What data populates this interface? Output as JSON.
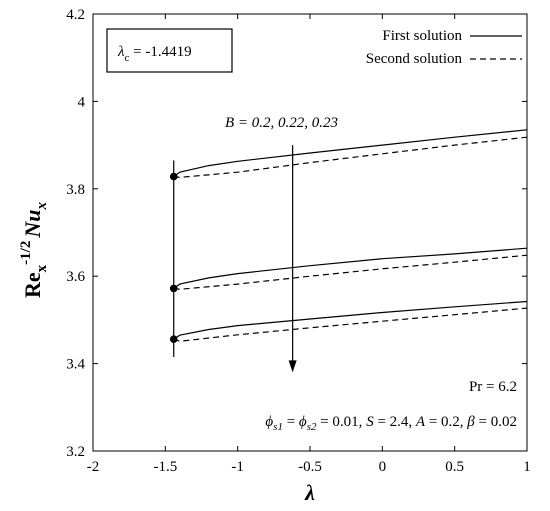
{
  "chart_data": {
    "type": "line",
    "xlabel": "λ",
    "ylabel": {
      "base": "Re",
      "sub": "x",
      "sup": "-1/2",
      "rest": "Nu",
      "rest_sub": "x"
    },
    "xlim": [
      -2,
      1
    ],
    "ylim": [
      3.2,
      4.2
    ],
    "x_ticks": [
      "-2",
      "-1.5",
      "-1",
      "-0.5",
      "0",
      "0.5",
      "1"
    ],
    "y_ticks": [
      "3.2",
      "3.4",
      "3.6",
      "3.8",
      "4",
      "4.2"
    ],
    "grid": false,
    "legend_position": "top-right",
    "legend": [
      {
        "label": "First solution",
        "style": "solid"
      },
      {
        "label": "Second solution",
        "style": "dashed"
      }
    ],
    "critical_label": {
      "symbol": "λ",
      "sub": "c",
      "value": " = -1.4419"
    },
    "critical_lambda": -1.4419,
    "arrow_label": "B = 0.2, 0.22, 0.23",
    "annotation_pr": "Pr = 6.2",
    "annotation_params": "ϕs1 = ϕs2 = 0.01, S = 2.4, A = 0.2, β = 0.02",
    "annotation_parts": {
      "phi1": "ϕ",
      "phi1_sub": "s1",
      "eq1": " = ",
      "phi2": "ϕ",
      "phi2_sub": "s2",
      "rest1": " = 0.01, ",
      "S": "S",
      "rest2": " = 2.4, ",
      "A": "A",
      "rest3": " = 0.2, ",
      "beta": "β",
      "rest4": " = 0.02"
    },
    "arrow_from": [
      -0.62,
      3.9
    ],
    "arrow_to": [
      -0.62,
      3.38
    ],
    "turning_points": [
      {
        "x": -1.4419,
        "y": 3.828
      },
      {
        "x": -1.4419,
        "y": 3.572
      },
      {
        "x": -1.4419,
        "y": 3.456
      }
    ],
    "series": [
      {
        "name": "First solution",
        "B": "0.2",
        "style": "solid",
        "x": [
          -1.4419,
          -1.4,
          -1.2,
          -1.0,
          -0.5,
          0,
          0.5,
          1.0
        ],
        "y": [
          3.828,
          3.838,
          3.853,
          3.863,
          3.882,
          3.9,
          3.918,
          3.935
        ]
      },
      {
        "name": "Second solution",
        "B": "0.2",
        "style": "dashed",
        "x": [
          -1.4419,
          -1.4,
          -1.0,
          -0.5,
          0,
          0.5,
          1.0
        ],
        "y": [
          3.828,
          3.826,
          3.838,
          3.86,
          3.88,
          3.9,
          3.918
        ]
      },
      {
        "name": "First solution",
        "B": "0.22",
        "style": "solid",
        "x": [
          -1.4419,
          -1.4,
          -1.2,
          -1.0,
          -0.5,
          0,
          0.5,
          1.0
        ],
        "y": [
          3.572,
          3.582,
          3.596,
          3.606,
          3.624,
          3.64,
          3.651,
          3.664
        ]
      },
      {
        "name": "Second solution",
        "B": "0.22",
        "style": "dashed",
        "x": [
          -1.4419,
          -1.4,
          -1.0,
          -0.5,
          0,
          0.5,
          1.0
        ],
        "y": [
          3.572,
          3.57,
          3.582,
          3.6,
          3.617,
          3.632,
          3.648
        ]
      },
      {
        "name": "First solution",
        "B": "0.23",
        "style": "solid",
        "x": [
          -1.4419,
          -1.4,
          -1.2,
          -1.0,
          -0.5,
          0,
          0.5,
          1.0
        ],
        "y": [
          3.456,
          3.465,
          3.478,
          3.487,
          3.502,
          3.517,
          3.53,
          3.542
        ]
      },
      {
        "name": "Second solution",
        "B": "0.23",
        "style": "dashed",
        "x": [
          -1.4419,
          -1.4,
          -1.0,
          -0.5,
          0,
          0.5,
          1.0
        ],
        "y": [
          3.456,
          3.451,
          3.466,
          3.482,
          3.497,
          3.512,
          3.527
        ]
      }
    ]
  }
}
